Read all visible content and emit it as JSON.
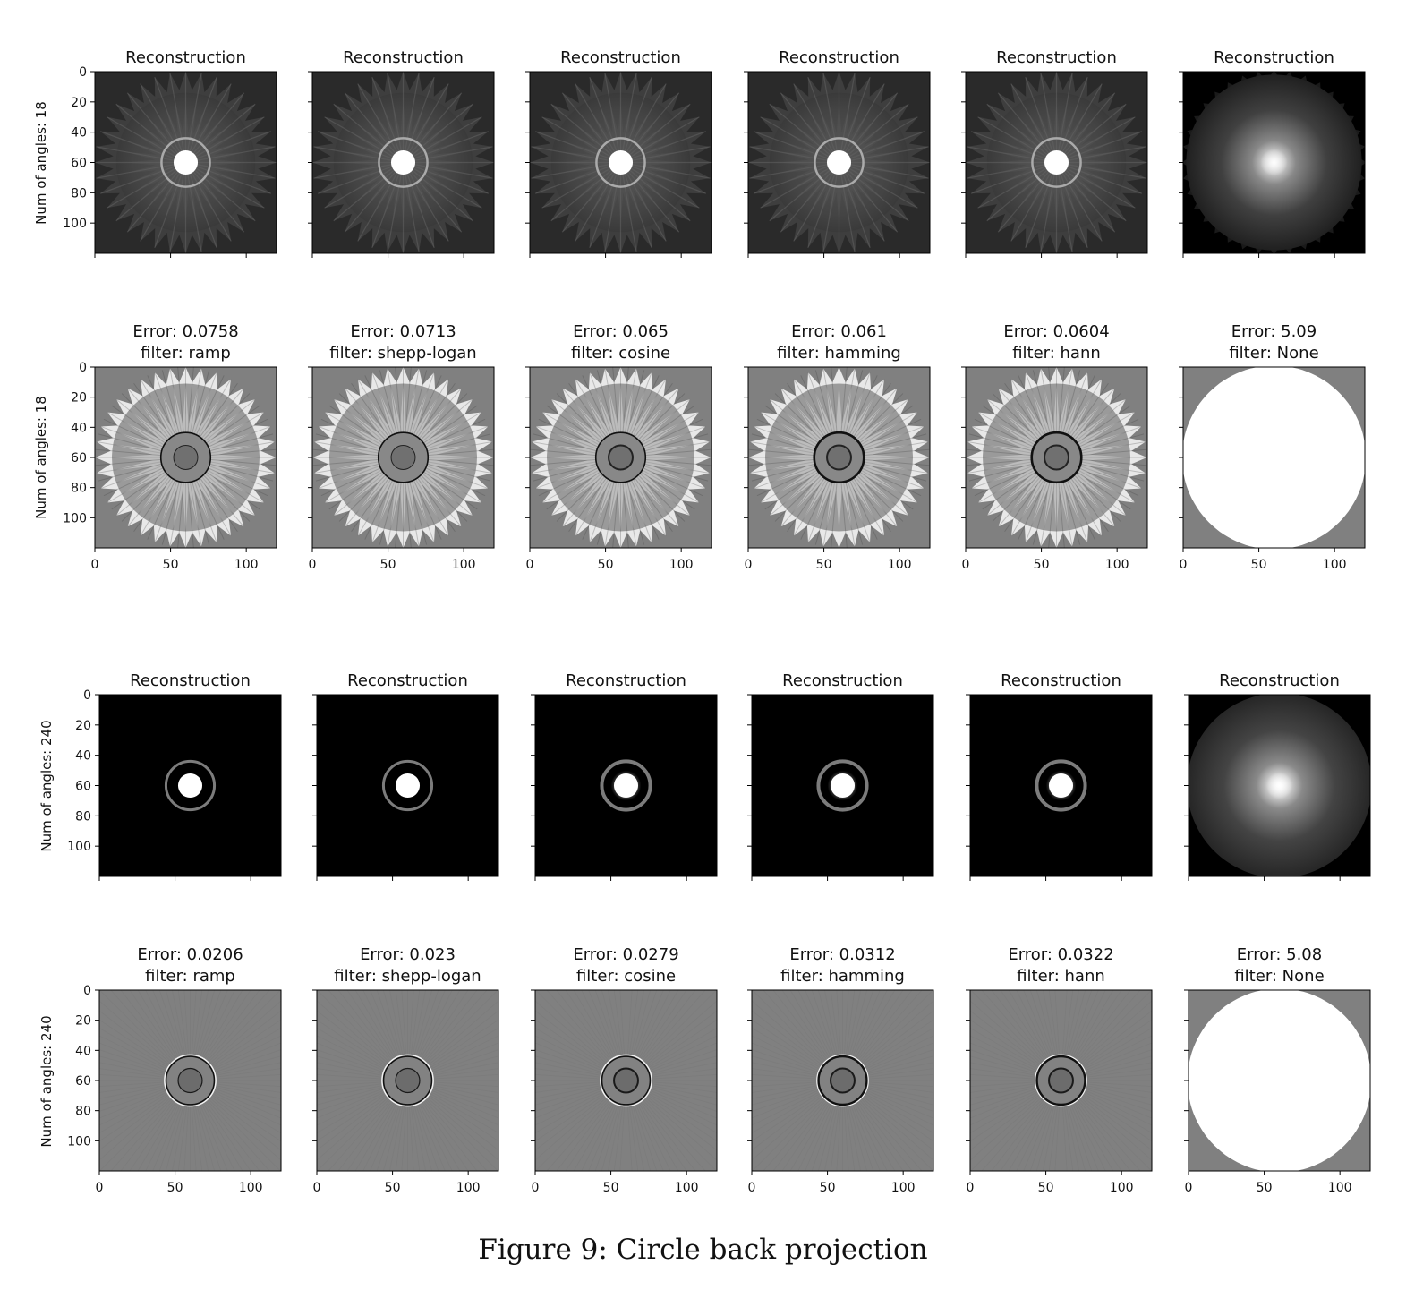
{
  "caption": "Figure 9: Circle back projection",
  "axes": {
    "xticks": [
      0,
      50,
      100
    ],
    "yticks": [
      0,
      20,
      40,
      60,
      80,
      100
    ],
    "range": [
      0,
      120
    ]
  },
  "groups": [
    {
      "ylabel": "Num of angles: 18",
      "recon_title": "Reconstruction",
      "panels": [
        {
          "filter": "ramp",
          "error_title": "Error: 0.0758",
          "filter_title": "filter: ramp"
        },
        {
          "filter": "shepp-logan",
          "error_title": "Error: 0.0713",
          "filter_title": "filter: shepp-logan"
        },
        {
          "filter": "cosine",
          "error_title": "Error: 0.065",
          "filter_title": "filter: cosine"
        },
        {
          "filter": "hamming",
          "error_title": "Error: 0.061",
          "filter_title": "filter: hamming"
        },
        {
          "filter": "hann",
          "error_title": "Error: 0.0604",
          "filter_title": "filter: hann"
        },
        {
          "filter": "None",
          "error_title": "Error: 5.09",
          "filter_title": "filter: None"
        }
      ]
    },
    {
      "ylabel": "Num of angles: 240",
      "recon_title": "Reconstruction",
      "panels": [
        {
          "filter": "ramp",
          "error_title": "Error: 0.0206",
          "filter_title": "filter: ramp"
        },
        {
          "filter": "shepp-logan",
          "error_title": "Error: 0.023",
          "filter_title": "filter: shepp-logan"
        },
        {
          "filter": "cosine",
          "error_title": "Error: 0.0279",
          "filter_title": "filter: cosine"
        },
        {
          "filter": "hamming",
          "error_title": "Error: 0.0312",
          "filter_title": "filter: hamming"
        },
        {
          "filter": "hann",
          "error_title": "Error: 0.0322",
          "filter_title": "filter: hann"
        },
        {
          "filter": "None",
          "error_title": "Error: 5.08",
          "filter_title": "filter: None"
        }
      ]
    }
  ]
}
